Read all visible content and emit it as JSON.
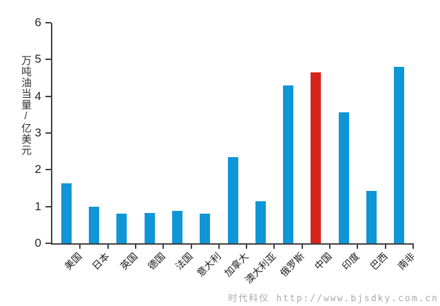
{
  "watermark": {
    "text": "时代科仪 http://www.bjsdky.com.cn"
  },
  "chart_data": {
    "type": "bar",
    "title": "",
    "xlabel": "",
    "ylabel": "万吨油当量/亿美元",
    "ylim": [
      0,
      6
    ],
    "yticks": [
      0,
      1,
      2,
      3,
      4,
      5,
      6
    ],
    "grid": false,
    "legend": null,
    "categories": [
      "美国",
      "日本",
      "英国",
      "德国",
      "法国",
      "意大利",
      "加拿大",
      "澳大利亚",
      "俄罗斯",
      "中国",
      "印度",
      "巴西",
      "南非"
    ],
    "values": [
      1.64,
      1.0,
      0.8,
      0.82,
      0.88,
      0.8,
      2.35,
      1.15,
      4.3,
      4.65,
      3.57,
      1.42,
      4.8
    ],
    "bar_color_default": "#0e96d6",
    "bar_color_highlight": "#d6251c",
    "highlight_index": 9,
    "axis_color": "#3e3e3e"
  }
}
